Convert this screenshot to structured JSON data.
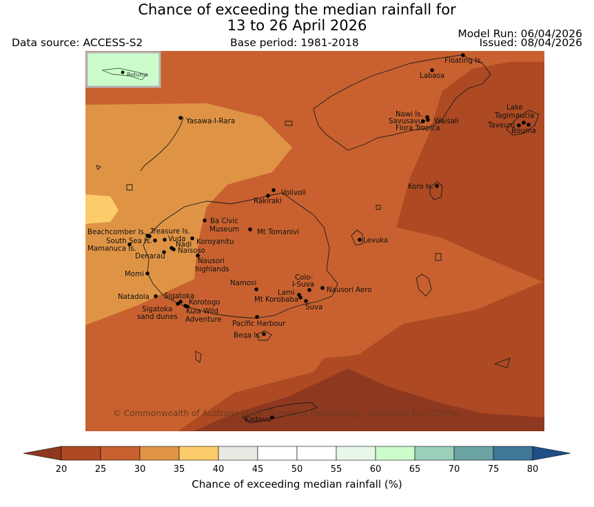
{
  "title_line1": "Chance of exceeding the median rainfall for",
  "title_line2": "13 to 26 April 2026",
  "data_source": "Data source: ACCESS-S2",
  "base_period": "Base period: 1981-2018",
  "model_run": "Model Run: 06/04/2026",
  "issued": "Issued: 08/04/2026",
  "inset_label": "Rotuma",
  "copyright": "© Commonwealth of Australia 2026, Bureau of Meteorology, supported by COSPPac",
  "colorbar": {
    "title": "Chance of exceeding median rainfall (%)",
    "ticks": [
      "20",
      "25",
      "30",
      "35",
      "40",
      "45",
      "50",
      "55",
      "60",
      "65",
      "70",
      "75",
      "80"
    ],
    "colors": [
      "#ad4a23",
      "#c8612f",
      "#df9445",
      "#fdcc6a",
      "#eae8e2",
      "#ffffff",
      "#ffffff",
      "#e8f7e8",
      "#ccfccc",
      "#9bcfb9",
      "#6ba3a3",
      "#3f7797"
    ],
    "under_color": "#8f3820",
    "over_color": "#1f4e87"
  },
  "places": [
    {
      "id": "floating-is",
      "label": "Floating Is."
    },
    {
      "id": "labasa",
      "label": "Labasa"
    },
    {
      "id": "nawi-is",
      "label": "Nawi Is."
    },
    {
      "id": "savusavu",
      "label": "Savusavu"
    },
    {
      "id": "waisali",
      "label": "Waisali"
    },
    {
      "id": "flora-tropica",
      "label": "Flora Tropica"
    },
    {
      "id": "lake-tagimaucia-1",
      "label": "Lake"
    },
    {
      "id": "lake-tagimaucia-2",
      "label": "Tagimaucia"
    },
    {
      "id": "taveuni",
      "label": "Taveuni"
    },
    {
      "id": "bouma",
      "label": "Bouma"
    },
    {
      "id": "yasawa",
      "label": "Yasawa-I-Rara"
    },
    {
      "id": "volivoli",
      "label": "Volivoli"
    },
    {
      "id": "rakiraki",
      "label": "Rakiraki"
    },
    {
      "id": "koro-is",
      "label": "Koro Is."
    },
    {
      "id": "beachcomber",
      "label": "Beachcomber Is."
    },
    {
      "id": "treasure",
      "label": "Treasure Is."
    },
    {
      "id": "south-sea",
      "label": "South Sea Is."
    },
    {
      "id": "vuda",
      "label": "Vuda"
    },
    {
      "id": "mamanuca",
      "label": "Mamanuca Is."
    },
    {
      "id": "ba-civic-1",
      "label": "Ba Civic"
    },
    {
      "id": "ba-civic-2",
      "label": "Museum"
    },
    {
      "id": "mt-tomanivi",
      "label": "Mt Tomanivi"
    },
    {
      "id": "koroyanitu",
      "label": "Koroyanitu"
    },
    {
      "id": "nadi",
      "label": "Nadi"
    },
    {
      "id": "naisoso",
      "label": "Naisoso"
    },
    {
      "id": "denarau",
      "label": "Denarau"
    },
    {
      "id": "nausori-hl-1",
      "label": "Nausori"
    },
    {
      "id": "nausori-hl-2",
      "label": "highlands"
    },
    {
      "id": "levuka",
      "label": "Levuka"
    },
    {
      "id": "momi",
      "label": "Momi"
    },
    {
      "id": "namosi",
      "label": "Namosi"
    },
    {
      "id": "colo-1",
      "label": "Colo-"
    },
    {
      "id": "colo-2",
      "label": "I-Suva"
    },
    {
      "id": "lami",
      "label": "Lami"
    },
    {
      "id": "nausori-aero",
      "label": "Nausori Aero"
    },
    {
      "id": "mt-korobaba",
      "label": "Mt Korobaba"
    },
    {
      "id": "suva",
      "label": "Suva"
    },
    {
      "id": "natadola",
      "label": "Natadola"
    },
    {
      "id": "sigatoka",
      "label": "Sigatoka"
    },
    {
      "id": "korotogo",
      "label": "Korotogo"
    },
    {
      "id": "sigatoka-dunes-1",
      "label": "Sigatoka"
    },
    {
      "id": "sigatoka-dunes-2",
      "label": "sand dunes"
    },
    {
      "id": "kula-1",
      "label": "Kula Wild"
    },
    {
      "id": "kula-2",
      "label": "Adventure"
    },
    {
      "id": "pacific-harbour",
      "label": "Pacific Harbour"
    },
    {
      "id": "beqa",
      "label": "Beqa Is."
    },
    {
      "id": "kadavu",
      "label": "Kadavu"
    }
  ]
}
